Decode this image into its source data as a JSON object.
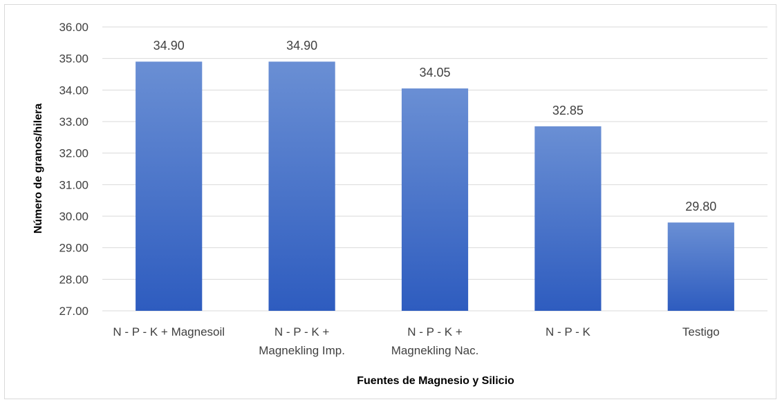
{
  "chart_data": {
    "type": "bar",
    "categories": [
      [
        "N - P - K + Magnesoil"
      ],
      [
        "N - P - K +",
        "Magnekling Imp."
      ],
      [
        "N - P - K +",
        "Magnekling Nac."
      ],
      [
        "N - P - K"
      ],
      [
        "Testigo"
      ]
    ],
    "values": [
      34.9,
      34.9,
      34.05,
      32.85,
      29.8
    ],
    "data_labels": [
      "34.90",
      "34.90",
      "34.05",
      "32.85",
      "29.80"
    ],
    "xlabel": "Fuentes de Magnesio y Silicio",
    "ylabel": "Número de granos/hilera",
    "ylim": [
      27,
      36
    ],
    "yticks": [
      "27.00",
      "28.00",
      "29.00",
      "30.00",
      "31.00",
      "32.00",
      "33.00",
      "34.00",
      "35.00",
      "36.00"
    ],
    "grid": true,
    "legend": "none",
    "colors": {
      "bar_top": "#6a8fd4",
      "bar_bottom": "#2e5cbf",
      "grid": "#d9d9d9"
    }
  }
}
